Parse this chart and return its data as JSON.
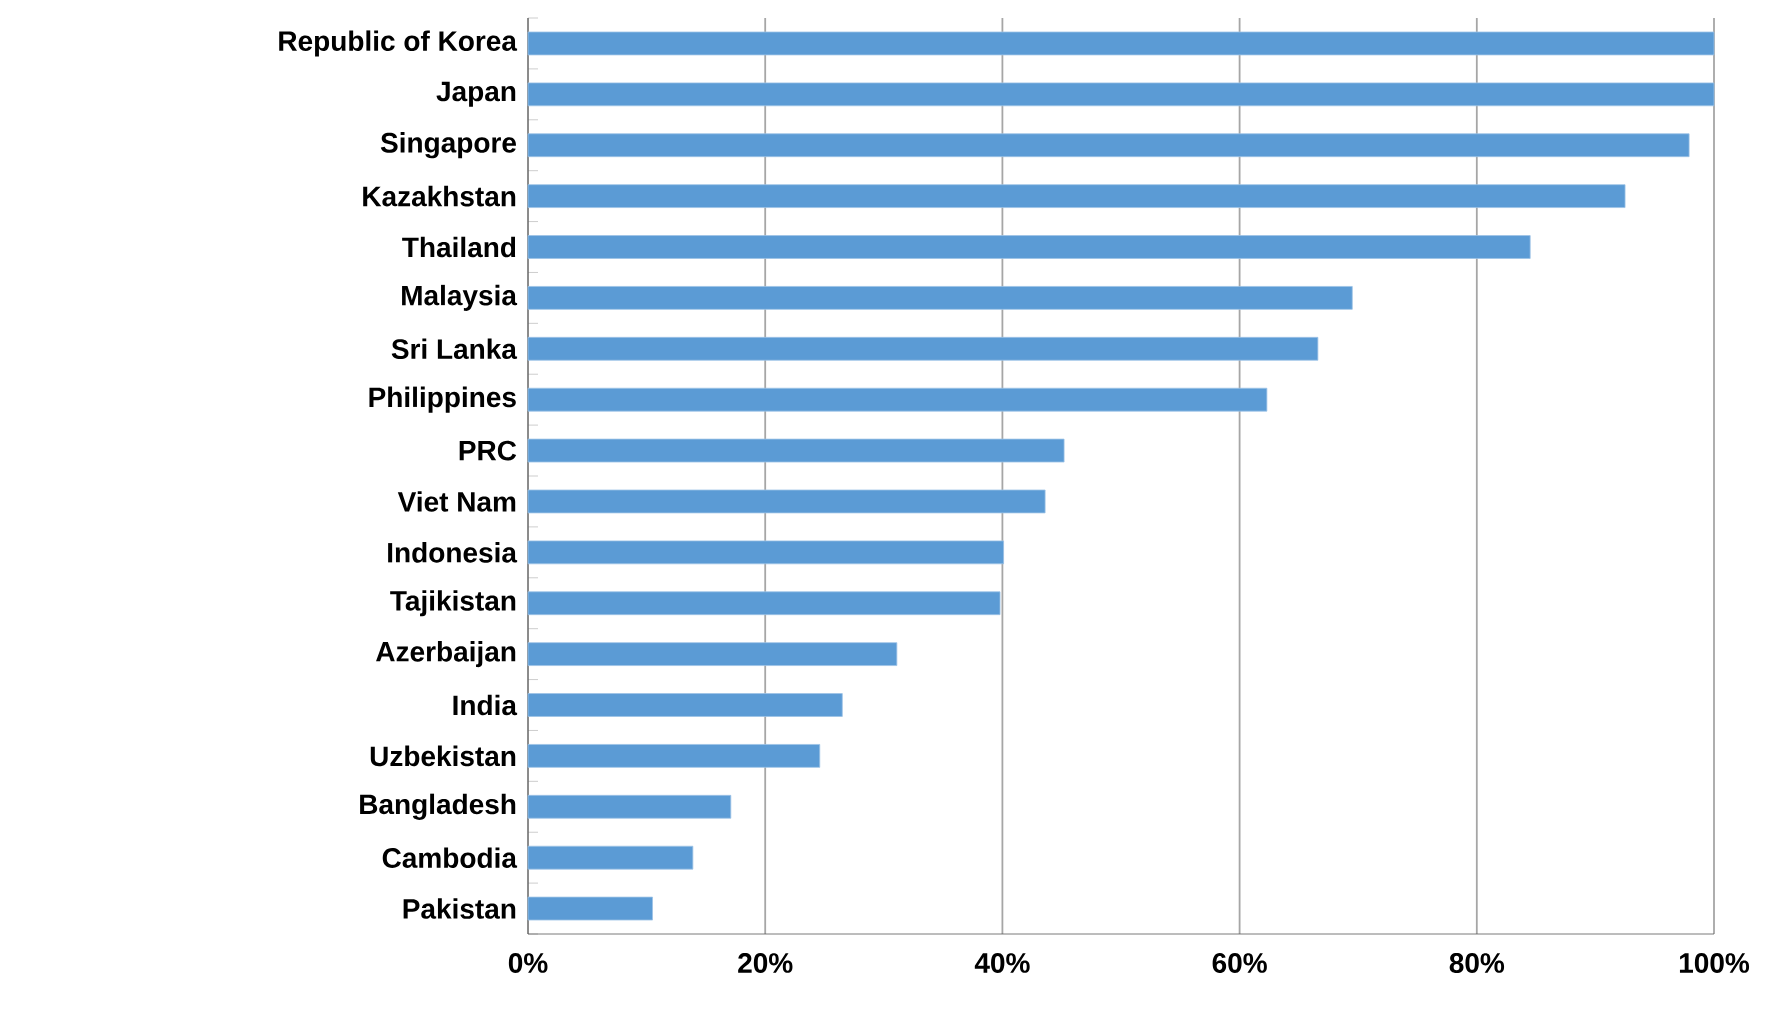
{
  "chart_data": {
    "type": "bar",
    "orientation": "horizontal",
    "categories": [
      "Republic of Korea",
      "Japan",
      "Singapore",
      "Kazakhstan",
      "Thailand",
      "Malaysia",
      "Sri Lanka",
      "Philippines",
      "PRC",
      "Viet Nam",
      "Indonesia",
      "Tajikistan",
      "Azerbaijan",
      "India",
      "Uzbekistan",
      "Bangladesh",
      "Cambodia",
      "Pakistan"
    ],
    "values": [
      100,
      100,
      97.9,
      92.5,
      84.5,
      69.5,
      66.6,
      62.3,
      45.2,
      43.6,
      40.1,
      39.8,
      31.1,
      26.5,
      24.6,
      17.1,
      13.9,
      10.5
    ],
    "color": "#5b9bd5",
    "xlim": [
      0,
      100
    ],
    "xticks": [
      {
        "value": 0,
        "label": "0%"
      },
      {
        "value": 20,
        "label": "20%"
      },
      {
        "value": 40,
        "label": "40%"
      },
      {
        "value": 60,
        "label": "60%"
      },
      {
        "value": 80,
        "label": "80%"
      },
      {
        "value": 100,
        "label": "100%"
      }
    ],
    "grid": "x"
  }
}
